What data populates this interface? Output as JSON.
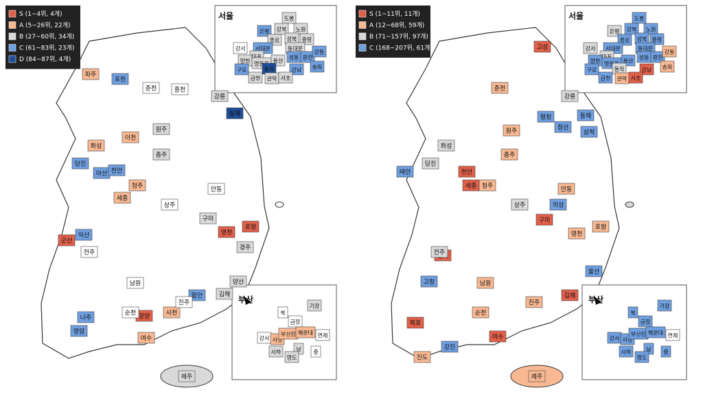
{
  "maps": [
    {
      "legend": [
        {
          "label": "S (1~4위, 4개)",
          "color": "#e0604a"
        },
        {
          "label": "A (5~26위, 22개)",
          "color": "#f7b892"
        },
        {
          "label": "B (27~60위, 34개)",
          "color": "#d9d9d9"
        },
        {
          "label": "C (61~83위, 23개)",
          "color": "#6f9fdf"
        },
        {
          "label": "D (84~87위, 4개)",
          "color": "#1f4e96"
        }
      ],
      "seoul_title": "서울",
      "busan_title": "부산",
      "regions": [
        {
          "name": "포항",
          "class": 0
        },
        {
          "name": "영천",
          "class": 0
        },
        {
          "name": "군산",
          "class": 0
        },
        {
          "name": "광양",
          "class": 0
        },
        {
          "name": "파주",
          "class": 1
        },
        {
          "name": "화성",
          "class": 1
        },
        {
          "name": "이천",
          "class": 1
        },
        {
          "name": "청주",
          "class": 1
        },
        {
          "name": "세종",
          "class": 1
        },
        {
          "name": "여수",
          "class": 1
        },
        {
          "name": "사천",
          "class": 1
        },
        {
          "name": "포천",
          "class": 3
        },
        {
          "name": "당진",
          "class": 3
        },
        {
          "name": "아산",
          "class": 3
        },
        {
          "name": "천안",
          "class": 3
        },
        {
          "name": "익산",
          "class": 3
        },
        {
          "name": "나주",
          "class": 3
        },
        {
          "name": "영암",
          "class": 3
        },
        {
          "name": "함안",
          "class": 3
        },
        {
          "name": "동해",
          "class": 4
        },
        {
          "name": "강릉",
          "class": 2
        },
        {
          "name": "원주",
          "class": 2
        },
        {
          "name": "충주",
          "class": 2
        },
        {
          "name": "경주",
          "class": 2
        },
        {
          "name": "김해",
          "class": 2
        },
        {
          "name": "양산",
          "class": 2
        },
        {
          "name": "구미",
          "class": 2
        },
        {
          "name": "제주",
          "class": 2
        },
        {
          "name": "춘천",
          "class": null
        },
        {
          "name": "홍천",
          "class": null
        },
        {
          "name": "안동",
          "class": null
        },
        {
          "name": "상주",
          "class": null
        },
        {
          "name": "전주",
          "class": null
        },
        {
          "name": "순천",
          "class": null
        },
        {
          "name": "진주",
          "class": null
        },
        {
          "name": "남원",
          "class": null
        }
      ],
      "seoul": [
        {
          "name": "도봉",
          "class": 2
        },
        {
          "name": "강북",
          "class": 2
        },
        {
          "name": "노원",
          "class": 2
        },
        {
          "name": "은평",
          "class": 3
        },
        {
          "name": "성북",
          "class": 2
        },
        {
          "name": "종로",
          "class": 2
        },
        {
          "name": "중랑",
          "class": 2
        },
        {
          "name": "서대문",
          "class": 3
        },
        {
          "name": "동대문",
          "class": 2
        },
        {
          "name": "마포",
          "class": 2
        },
        {
          "name": "성동",
          "class": 3
        },
        {
          "name": "광진",
          "class": 3
        },
        {
          "name": "강동",
          "class": 3
        },
        {
          "name": "강서",
          "class": null
        },
        {
          "name": "양천",
          "class": 2
        },
        {
          "name": "영등포",
          "class": 2
        },
        {
          "name": "용산",
          "class": 2
        },
        {
          "name": "동작",
          "class": 4
        },
        {
          "name": "구로",
          "class": 3
        },
        {
          "name": "강남",
          "class": 3
        },
        {
          "name": "송파",
          "class": 3
        },
        {
          "name": "금천",
          "class": 2
        },
        {
          "name": "관악",
          "class": 2
        },
        {
          "name": "서초",
          "class": 2
        }
      ],
      "busan": [
        {
          "name": "기장",
          "class": 2
        },
        {
          "name": "북",
          "class": null
        },
        {
          "name": "금정",
          "class": null
        },
        {
          "name": "강서",
          "class": null
        },
        {
          "name": "사상",
          "class": 1
        },
        {
          "name": "부산진",
          "class": 1
        },
        {
          "name": "연제",
          "class": null
        },
        {
          "name": "해운대",
          "class": 1
        },
        {
          "name": "남",
          "class": 2
        },
        {
          "name": "사하",
          "class": 2
        },
        {
          "name": "영도",
          "class": 2
        },
        {
          "name": "중",
          "class": null
        }
      ]
    },
    {
      "legend": [
        {
          "label": "S (1~11위, 11개)",
          "color": "#e0604a"
        },
        {
          "label": "A (12~68위, 59개)",
          "color": "#f7b892"
        },
        {
          "label": "B (71~157위, 97개)",
          "color": "#d9d9d9"
        },
        {
          "label": "C (168~207위, 61개)",
          "color": "#6f9fdf"
        }
      ],
      "seoul_title": "서울",
      "busan_title": "부산",
      "regions": [
        {
          "name": "고성",
          "class": 0
        },
        {
          "name": "천안",
          "class": 0
        },
        {
          "name": "세종",
          "class": 0
        },
        {
          "name": "구미",
          "class": 0
        },
        {
          "name": "김제",
          "class": 0
        },
        {
          "name": "목포",
          "class": 0
        },
        {
          "name": "여수",
          "class": 0
        },
        {
          "name": "김해",
          "class": 0
        },
        {
          "name": "포항",
          "class": 1
        },
        {
          "name": "영천",
          "class": 1
        },
        {
          "name": "진도",
          "class": 1
        },
        {
          "name": "제주",
          "class": 1
        },
        {
          "name": "화성",
          "class": 2
        },
        {
          "name": "춘천",
          "class": 1
        },
        {
          "name": "원주",
          "class": 1
        },
        {
          "name": "충주",
          "class": 1
        },
        {
          "name": "청주",
          "class": 1
        },
        {
          "name": "강릉",
          "class": 2
        },
        {
          "name": "평창",
          "class": 3
        },
        {
          "name": "정선",
          "class": 3
        },
        {
          "name": "동해",
          "class": 3
        },
        {
          "name": "삼척",
          "class": 3
        },
        {
          "name": "태안",
          "class": 3
        },
        {
          "name": "의성",
          "class": 3
        },
        {
          "name": "울산",
          "class": 3
        },
        {
          "name": "당진",
          "class": 2
        },
        {
          "name": "안동",
          "class": 1
        },
        {
          "name": "상주",
          "class": 2
        },
        {
          "name": "전주",
          "class": 2
        },
        {
          "name": "순천",
          "class": 1
        },
        {
          "name": "진주",
          "class": 1
        },
        {
          "name": "고창",
          "class": 3
        },
        {
          "name": "강진",
          "class": 3
        },
        {
          "name": "남원",
          "class": 1
        }
      ],
      "seoul": [
        {
          "name": "도봉",
          "class": 3
        },
        {
          "name": "강북",
          "class": 3
        },
        {
          "name": "노원",
          "class": 3
        },
        {
          "name": "은평",
          "class": 2
        },
        {
          "name": "성북",
          "class": 3
        },
        {
          "name": "종로",
          "class": 3
        },
        {
          "name": "중랑",
          "class": 3
        },
        {
          "name": "서대문",
          "class": 3
        },
        {
          "name": "동대문",
          "class": 3
        },
        {
          "name": "마포",
          "class": 2
        },
        {
          "name": "성동",
          "class": 3
        },
        {
          "name": "광진",
          "class": 3
        },
        {
          "name": "강동",
          "class": 1
        },
        {
          "name": "강서",
          "class": 2
        },
        {
          "name": "양천",
          "class": 3
        },
        {
          "name": "영등포",
          "class": 3
        },
        {
          "name": "용산",
          "class": 3
        },
        {
          "name": "동작",
          "class": 2
        },
        {
          "name": "구로",
          "class": 3
        },
        {
          "name": "강남",
          "class": 0
        },
        {
          "name": "송파",
          "class": 1
        },
        {
          "name": "금천",
          "class": 3
        },
        {
          "name": "관악",
          "class": 1
        },
        {
          "name": "서초",
          "class": 0
        }
      ],
      "busan": [
        {
          "name": "기장",
          "class": 3
        },
        {
          "name": "북",
          "class": 3
        },
        {
          "name": "금정",
          "class": 3
        },
        {
          "name": "강서",
          "class": 3
        },
        {
          "name": "사상",
          "class": 3
        },
        {
          "name": "부산진",
          "class": 3
        },
        {
          "name": "연제",
          "class": null
        },
        {
          "name": "해운대",
          "class": 3
        },
        {
          "name": "남",
          "class": 3
        },
        {
          "name": "사하",
          "class": 3
        },
        {
          "name": "영도",
          "class": 3
        },
        {
          "name": "중",
          "class": 3
        }
      ]
    }
  ]
}
